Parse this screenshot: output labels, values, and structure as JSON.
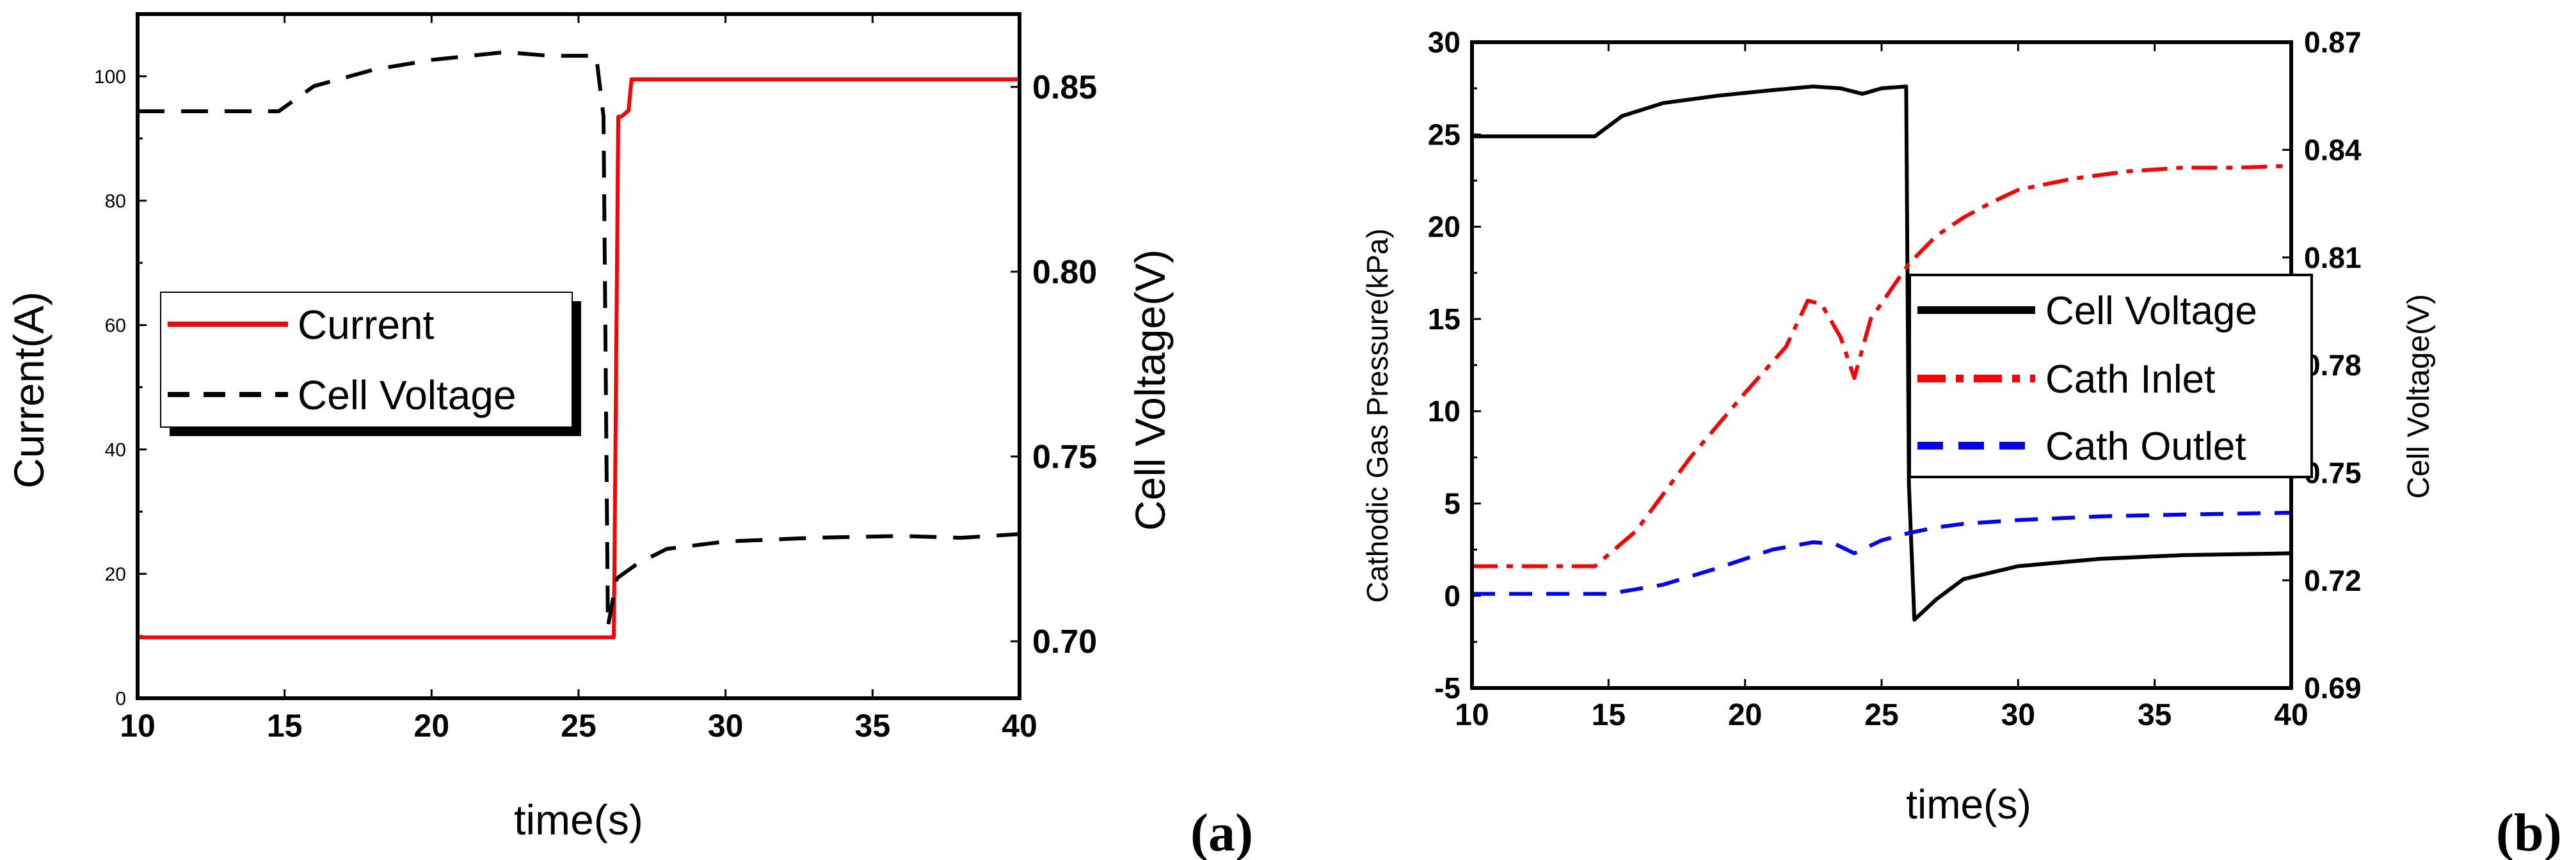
{
  "chart_data": [
    {
      "type": "line",
      "panel_label": "(a)",
      "xlabel": "time(s)",
      "ylabel": "Current(A)",
      "y2label": "Cell Voltage(V)",
      "xlim": [
        10,
        40
      ],
      "ylim": [
        0,
        110
      ],
      "y2lim": [
        0.6846,
        0.8697
      ],
      "xticks": [
        "10",
        "15",
        "20",
        "25",
        "30",
        "35",
        "40"
      ],
      "yticks": [
        "0",
        "20",
        "40",
        "60",
        "80",
        "100"
      ],
      "y2ticks": [
        "0.70",
        "0.75",
        "0.80",
        "0.85"
      ],
      "legend": {
        "placement": "center-left",
        "entries": [
          "Current",
          "Cell Voltage"
        ]
      },
      "series": [
        {
          "name": "Current",
          "axis": "left",
          "color": "#ff0000",
          "style": "solid",
          "x": [
            10,
            26.2,
            26.35,
            26.45,
            26.7,
            26.8,
            40
          ],
          "y": [
            9.8,
            9.8,
            93.5,
            93.5,
            94.5,
            99.5,
            99.5
          ]
        },
        {
          "name": "Cell Voltage",
          "axis": "right",
          "color": "#000000",
          "style": "dashed",
          "x": [
            10,
            14.8,
            16,
            18,
            20,
            22.5,
            24,
            25.6,
            25.85,
            26.0,
            26.3,
            27,
            28,
            30,
            33,
            36,
            38,
            40
          ],
          "y": [
            0.8434,
            0.8434,
            0.8502,
            0.8546,
            0.8573,
            0.8594,
            0.8584,
            0.8584,
            0.842,
            0.704,
            0.717,
            0.721,
            0.725,
            0.727,
            0.728,
            0.7285,
            0.728,
            0.729
          ]
        }
      ]
    },
    {
      "type": "line",
      "panel_label": "(b)",
      "xlabel": "time(s)",
      "ylabel": "Cathodic Gas Pressure(kPa)",
      "y2label": "Cell Voltage(V)",
      "xlim": [
        10,
        40
      ],
      "ylim": [
        -5,
        30
      ],
      "y2lim": [
        0.69,
        0.87
      ],
      "xticks": [
        "10",
        "15",
        "20",
        "25",
        "30",
        "35",
        "40"
      ],
      "yticks": [
        "-5",
        "0",
        "5",
        "10",
        "15",
        "20",
        "25",
        "30"
      ],
      "y2ticks": [
        "0.69",
        "0.72",
        "0.75",
        "0.78",
        "0.81",
        "0.84",
        "0.87"
      ],
      "legend": {
        "placement": "center-right",
        "entries": [
          "Cell Voltage",
          "Cath Inlet",
          "Cath Outlet"
        ]
      },
      "series": [
        {
          "name": "Cell Voltage",
          "axis": "left",
          "color": "#000000",
          "style": "solid",
          "x": [
            10,
            14.5,
            15.5,
            17,
            19,
            21,
            22.5,
            23.5,
            24.3,
            25,
            25.9,
            26.0,
            26.2,
            27,
            28,
            30,
            33,
            36,
            40
          ],
          "y": [
            24.9,
            24.9,
            26.0,
            26.7,
            27.1,
            27.4,
            27.6,
            27.5,
            27.2,
            27.5,
            27.6,
            6.0,
            -1.3,
            -0.2,
            0.9,
            1.6,
            2.0,
            2.2,
            2.3
          ]
        },
        {
          "name": "Cath Inlet",
          "axis": "left",
          "color": "#ff0000",
          "style": "dashdot",
          "x": [
            10,
            14.5,
            16,
            18,
            20,
            21.5,
            22.3,
            22.8,
            23.5,
            24.0,
            24.6,
            25.3,
            26,
            27,
            28,
            29,
            30,
            32,
            34,
            36,
            38,
            40
          ],
          "y": [
            1.6,
            1.6,
            3.5,
            7.5,
            11.0,
            13.5,
            16.0,
            15.8,
            14.0,
            11.8,
            15.0,
            16.5,
            18.0,
            19.5,
            20.5,
            21.3,
            22.0,
            22.6,
            23.0,
            23.2,
            23.2,
            23.3
          ]
        },
        {
          "name": "Cath Outlet",
          "axis": "left",
          "color": "#0000ff",
          "style": "dashed",
          "x": [
            10,
            15,
            17,
            19,
            21,
            22.5,
            23.3,
            24,
            25,
            26,
            27,
            28,
            30,
            33,
            36,
            40
          ],
          "y": [
            0.1,
            0.1,
            0.6,
            1.5,
            2.5,
            2.9,
            2.8,
            2.3,
            3.0,
            3.4,
            3.7,
            3.9,
            4.1,
            4.3,
            4.4,
            4.5
          ]
        }
      ]
    }
  ]
}
